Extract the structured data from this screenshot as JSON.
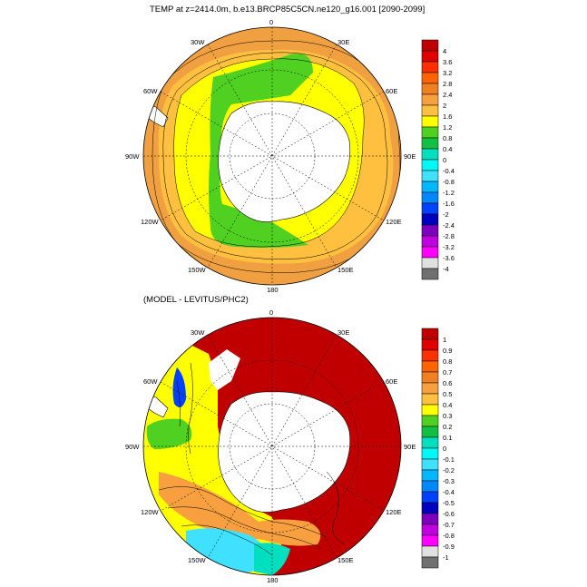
{
  "top_panel": {
    "title": "TEMP at z=2414.0m, b.e13.BRCP85C5CN.ne120_g16.001 [2090-2099]",
    "colorbar_labels": [
      "4",
      "3.6",
      "3.2",
      "2.8",
      "2.4",
      "2",
      "1.6",
      "1.2",
      "0.8",
      "0.4",
      "0",
      "-0.4",
      "-0.8",
      "-1.2",
      "-1.6",
      "-2",
      "-2.4",
      "-2.8",
      "-3.2",
      "-3.6",
      "-4"
    ],
    "colorbar_colors": [
      "#c00000",
      "#e00000",
      "#ff3000",
      "#ff6400",
      "#f08020",
      "#f8a040",
      "#ffc040",
      "#ffff00",
      "#50d020",
      "#10c040",
      "#00e0c0",
      "#00f8f8",
      "#40e0ff",
      "#00b8ff",
      "#0088ff",
      "#0040ff",
      "#0000c0",
      "#8000c0",
      "#c000e0",
      "#ff00ff",
      "#e0e0e0",
      "#707070"
    ]
  },
  "bottom_panel": {
    "title": "(MODEL - LEVITUS/PHC2)",
    "colorbar_labels": [
      "1",
      "0.9",
      "0.8",
      "0.7",
      "0.6",
      "0.5",
      "0.4",
      "0.3",
      "0.2",
      "0.1",
      "0",
      "-0.1",
      "-0.2",
      "-0.3",
      "-0.4",
      "-0.5",
      "-0.6",
      "-0.7",
      "-0.8",
      "-0.9",
      "-1"
    ],
    "colorbar_colors": [
      "#c00000",
      "#e00000",
      "#ff3000",
      "#ff6400",
      "#f08020",
      "#f8a040",
      "#ffc040",
      "#ffff00",
      "#50d020",
      "#10c040",
      "#00e0c0",
      "#00f8f8",
      "#40e0ff",
      "#00b8ff",
      "#0088ff",
      "#0040ff",
      "#0000c0",
      "#8000c0",
      "#c000e0",
      "#ff00ff",
      "#e0e0e0",
      "#707070"
    ]
  },
  "longitude_labels": {
    "lon0": "0",
    "lon30e": "30E",
    "lon60e": "60E",
    "lon90e": "90E",
    "lon120e": "120E",
    "lon150e": "150E",
    "lon180": "180",
    "lon150w": "150W",
    "lon120w": "120W",
    "lon90w": "90W",
    "lon60w": "60W",
    "lon30w": "30W"
  },
  "colors": {
    "land": "#ffffff",
    "top_ocean_main": "#f0a040",
    "top_ocean_yellow": "#ffff00",
    "top_ocean_green": "#50d020",
    "bottom_ocean_main": "#c00000",
    "bottom_ocean_yellow": "#ffff00",
    "bottom_ocean_green": "#50d020",
    "bottom_ocean_cyan": "#40e0ff"
  }
}
